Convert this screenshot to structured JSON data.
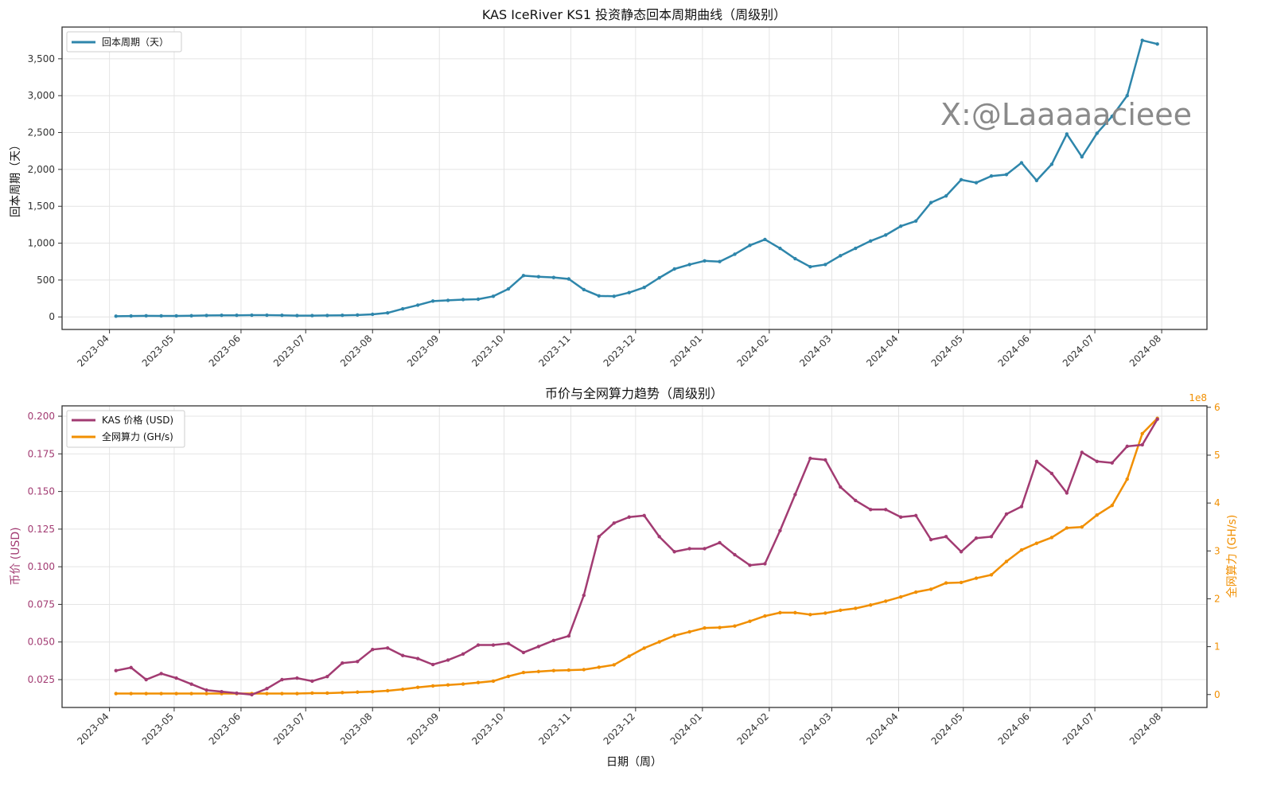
{
  "colors": {
    "payback": "#2E86AB",
    "price": "#A23B72",
    "hashrate": "#F18F01"
  },
  "watermark": "X:@Laaaaacieee",
  "chart_data": [
    {
      "type": "line",
      "title": "KAS IceRiver KS1 投资静态回本周期曲线（周级别）",
      "xlabel": "",
      "ylabel": "回本周期（天）",
      "ylim": [
        -170,
        3930
      ],
      "xlim": [
        "2023-03-10",
        "2024-08-22"
      ],
      "grid": true,
      "legend_position": "top-left",
      "x_ticks": [
        "2023-04",
        "2023-05",
        "2023-06",
        "2023-07",
        "2023-08",
        "2023-09",
        "2023-10",
        "2023-11",
        "2023-12",
        "2024-01",
        "2024-02",
        "2024-03",
        "2024-04",
        "2024-05",
        "2024-06",
        "2024-07",
        "2024-08"
      ],
      "y_ticks": [
        0,
        500,
        1000,
        1500,
        2000,
        2500,
        3000,
        3500
      ],
      "y_tick_labels": [
        "0",
        "500",
        "1,000",
        "1,500",
        "2,000",
        "2,500",
        "3,000",
        "3,500"
      ],
      "x": [
        "2023-04-04",
        "2023-04-11",
        "2023-04-18",
        "2023-04-25",
        "2023-05-02",
        "2023-05-09",
        "2023-05-16",
        "2023-05-23",
        "2023-05-30",
        "2023-06-06",
        "2023-06-13",
        "2023-06-20",
        "2023-06-27",
        "2023-07-04",
        "2023-07-11",
        "2023-07-18",
        "2023-07-25",
        "2023-08-01",
        "2023-08-08",
        "2023-08-15",
        "2023-08-22",
        "2023-08-29",
        "2023-09-05",
        "2023-09-12",
        "2023-09-19",
        "2023-09-26",
        "2023-10-03",
        "2023-10-10",
        "2023-10-17",
        "2023-10-24",
        "2023-10-31",
        "2023-11-07",
        "2023-11-14",
        "2023-11-21",
        "2023-11-28",
        "2023-12-05",
        "2023-12-12",
        "2023-12-19",
        "2023-12-26",
        "2024-01-02",
        "2024-01-09",
        "2024-01-16",
        "2024-01-23",
        "2024-01-30",
        "2024-02-06",
        "2024-02-13",
        "2024-02-20",
        "2024-02-27",
        "2024-03-05",
        "2024-03-12",
        "2024-03-19",
        "2024-03-26",
        "2024-04-02",
        "2024-04-09",
        "2024-04-16",
        "2024-04-23",
        "2024-04-30",
        "2024-05-07",
        "2024-05-14",
        "2024-05-21",
        "2024-05-28",
        "2024-06-04",
        "2024-06-11",
        "2024-06-18",
        "2024-06-25",
        "2024-07-02",
        "2024-07-09",
        "2024-07-16",
        "2024-07-23",
        "2024-07-30"
      ],
      "series": [
        {
          "name": "回本周期（天）",
          "color": "#2E86AB",
          "values": [
            10,
            12,
            15,
            14,
            14,
            16,
            20,
            22,
            22,
            24,
            24,
            22,
            18,
            18,
            20,
            22,
            26,
            35,
            55,
            110,
            160,
            215,
            225,
            235,
            240,
            280,
            380,
            560,
            545,
            535,
            515,
            370,
            285,
            280,
            330,
            400,
            530,
            650,
            710,
            760,
            750,
            850,
            970,
            1050,
            930,
            790,
            680,
            710,
            830,
            930,
            1030,
            1110,
            1230,
            1300,
            1550,
            1640,
            1860,
            1820,
            1910,
            1930,
            2090,
            1850,
            2070,
            2480,
            2170,
            2490,
            2720,
            3000,
            3750,
            3700
          ]
        }
      ]
    },
    {
      "type": "line",
      "title": "币价与全网算力趋势（周级别）",
      "xlabel": "日期（周）",
      "ylabel": "币价 (USD)",
      "y2label": "全网算力 (GH/s)",
      "y2_offset_label": "1e8",
      "ylim": [
        0.0065,
        0.2069
      ],
      "y2lim": [
        -0.27,
        6.03
      ],
      "grid": true,
      "legend_position": "top-left",
      "y_ticks": [
        0.025,
        0.05,
        0.075,
        0.1,
        0.125,
        0.15,
        0.175,
        0.2
      ],
      "y_tick_labels": [
        "0.025",
        "0.050",
        "0.075",
        "0.100",
        "0.125",
        "0.150",
        "0.175",
        "0.200"
      ],
      "y2_ticks": [
        0,
        1,
        2,
        3,
        4,
        5,
        6
      ],
      "y2_tick_labels": [
        "0",
        "1",
        "2",
        "3",
        "4",
        "5",
        "6"
      ],
      "series": [
        {
          "name": "KAS 价格 (USD)",
          "axis": "left",
          "color": "#A23B72",
          "values": [
            0.031,
            0.033,
            0.025,
            0.029,
            0.026,
            0.022,
            0.018,
            0.017,
            0.016,
            0.015,
            0.019,
            0.025,
            0.026,
            0.024,
            0.027,
            0.036,
            0.037,
            0.045,
            0.046,
            0.041,
            0.039,
            0.035,
            0.038,
            0.042,
            0.048,
            0.048,
            0.049,
            0.043,
            0.047,
            0.051,
            0.054,
            0.081,
            0.12,
            0.129,
            0.133,
            0.134,
            0.12,
            0.11,
            0.112,
            0.112,
            0.116,
            0.108,
            0.101,
            0.102,
            0.124,
            0.148,
            0.172,
            0.171,
            0.153,
            0.144,
            0.138,
            0.138,
            0.133,
            0.134,
            0.118,
            0.12,
            0.11,
            0.119,
            0.12,
            0.135,
            0.14,
            0.17,
            0.162,
            0.149,
            0.176,
            0.17,
            0.169,
            0.18,
            0.181,
            0.198
          ]
        },
        {
          "name": "全网算力 (GH/s)",
          "axis": "right",
          "unit_scale": "1e8",
          "color": "#F18F01",
          "values": [
            0.02,
            0.02,
            0.02,
            0.02,
            0.02,
            0.02,
            0.02,
            0.02,
            0.02,
            0.02,
            0.02,
            0.02,
            0.02,
            0.03,
            0.03,
            0.04,
            0.05,
            0.06,
            0.08,
            0.11,
            0.15,
            0.18,
            0.2,
            0.22,
            0.25,
            0.28,
            0.38,
            0.46,
            0.48,
            0.5,
            0.51,
            0.52,
            0.57,
            0.62,
            0.8,
            0.97,
            1.1,
            1.23,
            1.31,
            1.39,
            1.4,
            1.43,
            1.53,
            1.64,
            1.71,
            1.71,
            1.67,
            1.7,
            1.76,
            1.8,
            1.87,
            1.95,
            2.04,
            2.14,
            2.2,
            2.33,
            2.34,
            2.43,
            2.5,
            2.78,
            3.02,
            3.16,
            3.28,
            3.48,
            3.5,
            3.75,
            3.95,
            4.5,
            5.45,
            5.77
          ]
        }
      ]
    }
  ]
}
